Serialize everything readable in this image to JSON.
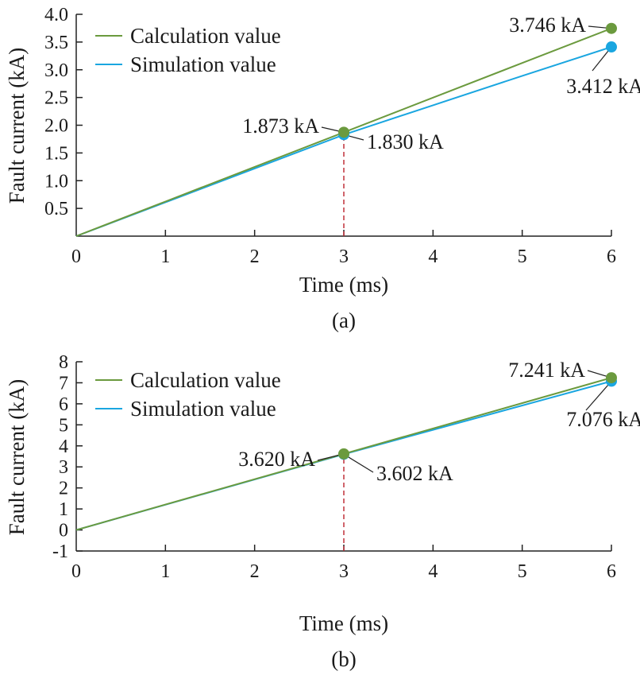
{
  "figure": {
    "captions": [
      "(a)",
      "(b)"
    ]
  },
  "colors": {
    "calculation": "#6b9a3e",
    "simulation": "#1aa6e0",
    "marker_line": "#c0303a",
    "axis": "#222222"
  },
  "chart_data": [
    {
      "type": "line",
      "caption": "(a)",
      "xlabel": "Time (ms)",
      "ylabel": "Fault current (kA)",
      "xlim": [
        0,
        6
      ],
      "ylim": [
        0,
        4.0
      ],
      "x_ticks": [
        "0",
        "1",
        "2",
        "3",
        "4",
        "5",
        "6"
      ],
      "y_ticks": [
        "0.5",
        "1.0",
        "1.5",
        "2.0",
        "2.5",
        "3.0",
        "3.5",
        "4.0"
      ],
      "legend_position": "top-left",
      "vertical_marker_x": 3,
      "series": [
        {
          "name": "Calculation value",
          "color": "#6b9a3e",
          "x": [
            0,
            1,
            2,
            3,
            4,
            5,
            6
          ],
          "y": [
            0,
            0.624,
            1.249,
            1.873,
            2.497,
            3.122,
            3.746
          ]
        },
        {
          "name": "Simulation value",
          "color": "#1aa6e0",
          "x": [
            0,
            1,
            2,
            3,
            4,
            5,
            6
          ],
          "y": [
            0,
            0.61,
            1.22,
            1.83,
            2.36,
            2.89,
            3.412
          ]
        }
      ],
      "annotations": [
        {
          "text": "1.873 kA",
          "x": 3,
          "y": 1.873,
          "series": "Calculation value"
        },
        {
          "text": "1.830 kA",
          "x": 3,
          "y": 1.83,
          "series": "Simulation value"
        },
        {
          "text": "3.746 kA",
          "x": 6,
          "y": 3.746,
          "series": "Calculation value"
        },
        {
          "text": "3.412 kA",
          "x": 6,
          "y": 3.412,
          "series": "Simulation value"
        }
      ]
    },
    {
      "type": "line",
      "caption": "(b)",
      "xlabel": "Time (ms)",
      "ylabel": "Fault current (kA)",
      "xlim": [
        0,
        6
      ],
      "ylim": [
        -1,
        8
      ],
      "x_ticks": [
        "0",
        "1",
        "2",
        "3",
        "4",
        "5",
        "6"
      ],
      "y_ticks": [
        "-1",
        "0",
        "1",
        "2",
        "3",
        "4",
        "5",
        "6",
        "7",
        "8"
      ],
      "legend_position": "top-left",
      "vertical_marker_x": 3,
      "series": [
        {
          "name": "Calculation value",
          "color": "#6b9a3e",
          "x": [
            0,
            1,
            2,
            3,
            4,
            5,
            6
          ],
          "y": [
            0,
            1.207,
            2.413,
            3.62,
            4.827,
            6.034,
            7.241
          ]
        },
        {
          "name": "Simulation value",
          "color": "#1aa6e0",
          "x": [
            0,
            1,
            2,
            3,
            4,
            5,
            6
          ],
          "y": [
            0,
            1.201,
            2.401,
            3.602,
            4.76,
            5.92,
            7.076
          ]
        }
      ],
      "annotations": [
        {
          "text": "3.620 kA",
          "x": 3,
          "y": 3.62,
          "series": "Calculation value"
        },
        {
          "text": "3.602 kA",
          "x": 3,
          "y": 3.602,
          "series": "Simulation value"
        },
        {
          "text": "7.241 kA",
          "x": 6,
          "y": 7.241,
          "series": "Calculation value"
        },
        {
          "text": "7.076 kA",
          "x": 6,
          "y": 7.076,
          "series": "Simulation value"
        }
      ]
    }
  ]
}
